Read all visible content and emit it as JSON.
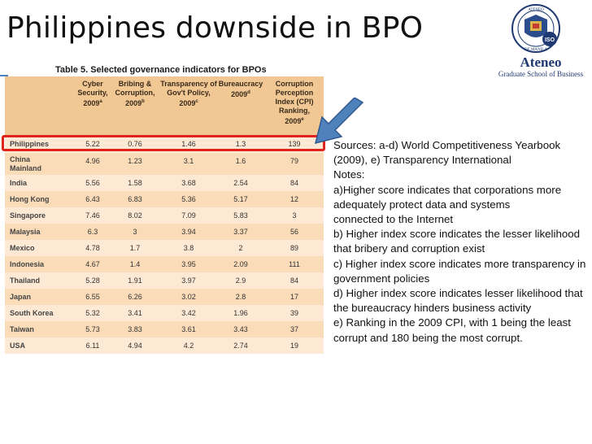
{
  "slide": {
    "title": "Philippines downside in BPO"
  },
  "logo": {
    "seal_text_top": "ATENEO",
    "seal_text_bottom": "DE MANILA",
    "seal_center": "ISO",
    "brand": "Ateneo",
    "subtitle": "Graduate School of Business"
  },
  "table": {
    "title": "Table 5. Selected governance indicators for BPOs",
    "headers": [
      {
        "label": "Cyber Security, 2009",
        "mark": "a"
      },
      {
        "label": "Bribing & Corruption, 2009",
        "mark": "b"
      },
      {
        "label": "Transparency of Gov't Policy, 2009",
        "mark": "c"
      },
      {
        "label": "Bureaucracy 2009",
        "mark": "d"
      },
      {
        "label": "Corruption Perception Index (CPI) Ranking, 2009",
        "mark": "e"
      }
    ],
    "rows": [
      {
        "country": "Philippines",
        "values": [
          "5.22",
          "0.76",
          "1.46",
          "1.3",
          "139"
        ]
      },
      {
        "country": "China Mainland",
        "values": [
          "4.96",
          "1.23",
          "3.1",
          "1.6",
          "79"
        ]
      },
      {
        "country": "India",
        "values": [
          "5.56",
          "1.58",
          "3.68",
          "2.54",
          "84"
        ]
      },
      {
        "country": "Hong Kong",
        "values": [
          "6.43",
          "6.83",
          "5.36",
          "5.17",
          "12"
        ]
      },
      {
        "country": "Singapore",
        "values": [
          "7.46",
          "8.02",
          "7.09",
          "5.83",
          "3"
        ]
      },
      {
        "country": "Malaysia",
        "values": [
          "6.3",
          "3",
          "3.94",
          "3.37",
          "56"
        ]
      },
      {
        "country": "Mexico",
        "values": [
          "4.78",
          "1.7",
          "3.8",
          "2",
          "89"
        ]
      },
      {
        "country": "Indonesia",
        "values": [
          "4.67",
          "1.4",
          "3.95",
          "2.09",
          "111"
        ]
      },
      {
        "country": "Thailand",
        "values": [
          "5.28",
          "1.91",
          "3.97",
          "2.9",
          "84"
        ]
      },
      {
        "country": "Japan",
        "values": [
          "6.55",
          "6.26",
          "3.02",
          "2.8",
          "17"
        ]
      },
      {
        "country": "South Korea",
        "values": [
          "5.32",
          "3.41",
          "3.42",
          "1.96",
          "39"
        ]
      },
      {
        "country": "Taiwan",
        "values": [
          "5.73",
          "3.83",
          "3.61",
          "3.43",
          "37"
        ]
      },
      {
        "country": "USA",
        "values": [
          "6.11",
          "4.94",
          "4.2",
          "2.74",
          "19"
        ]
      }
    ]
  },
  "notes": [
    "Sources: a-d) World Competitiveness Yearbook (2009), e) Transparency International",
    "Notes:",
    "a)Higher score indicates that corporations more adequately protect data and systems",
    "connected to the Internet",
    "b) Higher index score indicates the lesser likelihood that bribery and corruption exist",
    "c) Higher index score indicates more transparency in government policies",
    "d) Higher index score indicates lesser likelihood that the bureaucracy hinders business activity",
    "e) Ranking in the 2009 CPI, with 1 being the least corrupt and 180 being the most corrupt."
  ],
  "colors": {
    "header_bg": "#f1c894",
    "row_light": "#fde9d4",
    "row_dark": "#fbdcb8",
    "highlight_border": "#e0231c",
    "arrow_fill": "#4f81bd",
    "brand_navy": "#1f3a73"
  }
}
